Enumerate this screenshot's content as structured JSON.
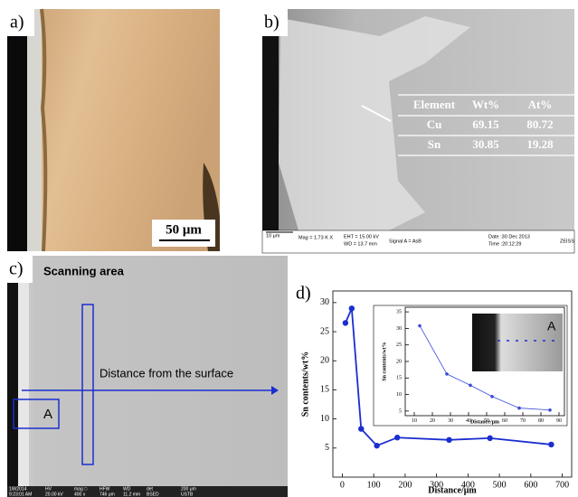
{
  "panels": {
    "a": {
      "label": "a)",
      "scale_bar": "50 μm"
    },
    "b": {
      "label": "b)",
      "table": {
        "header": [
          "Element",
          "Wt%",
          "At%"
        ],
        "rows": [
          [
            "Cu",
            69.15,
            80.72
          ],
          [
            "Sn",
            30.85,
            19.28
          ]
        ]
      },
      "info": [
        "10 μm",
        "Mag =  1.73 K X",
        "EHT = 15.00 kV",
        "WD = 13.7 mm",
        "Signal A = AsB",
        "Date :30 Dec 2013",
        "Time :20:12:29",
        "ZEISS"
      ]
    },
    "c": {
      "label": "c)",
      "scanning": "Scanning area",
      "distance": "Distance from the surface",
      "region": "A",
      "info": [
        [
          "1/8/2014",
          "HV",
          "mag □",
          "HFW",
          "WD",
          "det",
          "200 μm"
        ],
        [
          "9:23:01 AM",
          "20.00 kV",
          "400 x",
          "746 μm",
          "11.2 mm",
          "BSED",
          "USTB"
        ]
      ]
    },
    "d": {
      "label": "d)",
      "inset_region": "A"
    }
  },
  "chart_data": [
    {
      "type": "line",
      "x": [
        10,
        30,
        60,
        110,
        175,
        340,
        470,
        665
      ],
      "values": [
        26.5,
        29,
        8.3,
        5.4,
        6.8,
        6.4,
        6.7,
        5.6
      ],
      "color": "#1a2ed0",
      "xlim": [
        -30,
        730
      ],
      "ylim": [
        0,
        32
      ],
      "xticks": [
        0,
        100,
        200,
        300,
        400,
        500,
        600,
        700
      ],
      "yticks": [
        5,
        10,
        15,
        20,
        25,
        30
      ],
      "xlabel": "Distance/μm",
      "ylabel": "Sn contents/wt%",
      "grid": false
    },
    {
      "type": "line",
      "x": [
        13,
        28,
        41,
        53,
        68,
        85
      ],
      "values": [
        30.8,
        16.2,
        12.8,
        9.4,
        5.9,
        5.3
      ],
      "color": "#3a4ad8",
      "xlim": [
        5,
        93
      ],
      "ylim": [
        3.6,
        36.4
      ],
      "xticks": [
        10,
        20,
        30,
        40,
        50,
        60,
        70,
        80,
        90
      ],
      "yticks": [
        5,
        10,
        15,
        20,
        25,
        30,
        35
      ],
      "xlabel": "Distance/μm",
      "ylabel": "Sn contents/wt%",
      "grid": false
    }
  ]
}
